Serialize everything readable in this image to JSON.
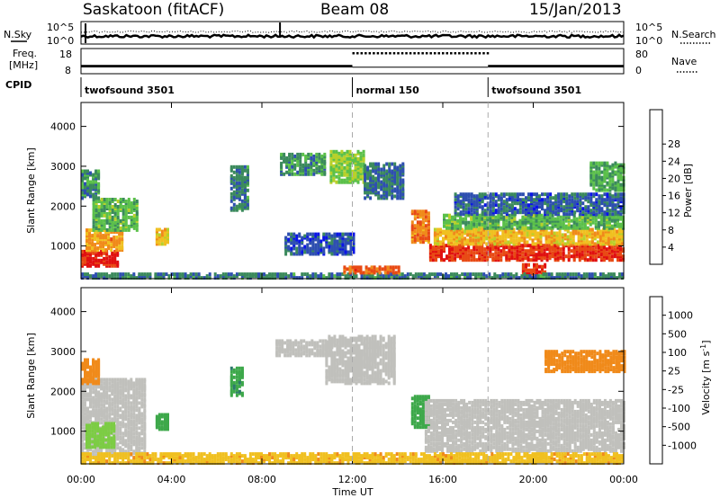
{
  "header": {
    "station": "Saskatoon (fitACF)",
    "beam": "Beam 08",
    "date": "15/Jan/2013"
  },
  "panel_labels": {
    "nsky": "N.Sky",
    "nsearch": "N.Search",
    "freq_line1": "Freq.",
    "freq_line2": "[MHz]",
    "nave": "Nave",
    "cpid": "CPID"
  },
  "noise_axis": {
    "left_ticks": [
      "10^5",
      "10^0"
    ],
    "right_ticks": [
      "10^5",
      "10^0"
    ]
  },
  "freq_axis": {
    "left_ticks": [
      "18",
      "8"
    ],
    "right_ticks": [
      "80",
      "0"
    ]
  },
  "cpid_segments": [
    {
      "label": "twofsound 3501",
      "start_hour": 0,
      "end_hour": 12
    },
    {
      "label": "normal 150",
      "start_hour": 12,
      "end_hour": 18
    },
    {
      "label": "twofsound 3501",
      "start_hour": 18,
      "end_hour": 24
    }
  ],
  "x_axis": {
    "label": "Time UT",
    "ticks": [
      "00:00",
      "04:00",
      "08:00",
      "12:00",
      "16:00",
      "20:00",
      "00:00"
    ],
    "tick_hours": [
      0,
      4,
      8,
      12,
      16,
      20,
      24
    ],
    "range_hours": [
      0,
      24
    ]
  },
  "chart_data": [
    {
      "type": "heatmap",
      "title": "",
      "parameter": "power",
      "xlabel": "Time UT",
      "ylabel": "Slant Range [km]",
      "xlim": [
        0,
        24
      ],
      "ylim": [
        180,
        4600
      ],
      "yticks": [
        1000,
        2000,
        3000,
        4000
      ],
      "colorbar": {
        "label": "Power [dB]",
        "ticks": [
          "4",
          "8",
          "12",
          "16",
          "20",
          "24",
          "28"
        ],
        "range": [
          0,
          32
        ],
        "colors": [
          "#0a14e8",
          "#2e4fb0",
          "#3b8a5c",
          "#5bc04a",
          "#b8d02a",
          "#f0c020",
          "#f08a1a",
          "#e84a14",
          "#e01010"
        ]
      },
      "regions": [
        {
          "t0": 0.0,
          "t1": 1.6,
          "r0": 500,
          "r1": 900,
          "value": 29
        },
        {
          "t0": 0.2,
          "t1": 1.8,
          "r0": 900,
          "r1": 1400,
          "value": 22
        },
        {
          "t0": 0.5,
          "t1": 2.5,
          "r0": 1400,
          "r1": 2200,
          "value": 12
        },
        {
          "t0": 0.0,
          "t1": 0.8,
          "r0": 2200,
          "r1": 2900,
          "value": 9
        },
        {
          "t0": 3.3,
          "t1": 3.9,
          "r0": 1050,
          "r1": 1450,
          "value": 20
        },
        {
          "t0": 6.6,
          "t1": 7.4,
          "r0": 1900,
          "r1": 3000,
          "value": 8
        },
        {
          "t0": 8.8,
          "t1": 10.8,
          "r0": 2800,
          "r1": 3300,
          "value": 9
        },
        {
          "t0": 9.0,
          "t1": 12.0,
          "r0": 800,
          "r1": 1300,
          "value": 5
        },
        {
          "t0": 11.0,
          "t1": 12.5,
          "r0": 2600,
          "r1": 3400,
          "value": 14
        },
        {
          "t0": 12.5,
          "t1": 14.2,
          "r0": 2200,
          "r1": 3100,
          "value": 7
        },
        {
          "t0": 14.6,
          "t1": 15.4,
          "r0": 1100,
          "r1": 1900,
          "value": 24
        },
        {
          "t0": 15.4,
          "t1": 24.0,
          "r0": 650,
          "r1": 1050,
          "value": 28
        },
        {
          "t0": 15.6,
          "t1": 24.0,
          "r0": 1050,
          "r1": 1450,
          "value": 20
        },
        {
          "t0": 16.0,
          "t1": 24.0,
          "r0": 1450,
          "r1": 1800,
          "value": 12
        },
        {
          "t0": 16.5,
          "t1": 24.0,
          "r0": 1800,
          "r1": 2300,
          "value": 6
        },
        {
          "t0": 19.5,
          "t1": 20.5,
          "r0": 300,
          "r1": 550,
          "value": 29
        },
        {
          "t0": 22.5,
          "t1": 24.0,
          "r0": 2400,
          "r1": 3100,
          "value": 11
        },
        {
          "t0": 0.0,
          "t1": 24.0,
          "r0": 200,
          "r1": 330,
          "value": 8
        },
        {
          "t0": 11.6,
          "t1": 14.0,
          "r0": 330,
          "r1": 500,
          "value": 26
        }
      ]
    },
    {
      "type": "heatmap",
      "title": "",
      "parameter": "velocity",
      "xlabel": "Time UT",
      "ylabel": "Slant Range [km]",
      "xlim": [
        0,
        24
      ],
      "ylim": [
        180,
        4600
      ],
      "yticks": [
        1000,
        2000,
        3000,
        4000
      ],
      "colorbar": {
        "label": "Velocity [m s^-1]",
        "ticks": [
          "1000",
          "500",
          "100",
          "25",
          "-25",
          "-100",
          "-500",
          "-1000"
        ],
        "levels": [
          1000,
          500,
          100,
          25,
          -25,
          -100,
          -500,
          -1000
        ],
        "colors": [
          "#1a3aa8",
          "#2c7a6a",
          "#3da84a",
          "#7ccc44",
          "#c0c0bc",
          "#f0c020",
          "#f08a1a",
          "#e84a14",
          "#e01010"
        ]
      },
      "regions": [
        {
          "t0": 0.0,
          "t1": 2.8,
          "r0": 400,
          "r1": 2300,
          "value": 0
        },
        {
          "t0": 0.2,
          "t1": 1.5,
          "r0": 600,
          "r1": 1200,
          "value": 60
        },
        {
          "t0": 0.0,
          "t1": 0.8,
          "r0": 2200,
          "r1": 2800,
          "value": -150
        },
        {
          "t0": 3.3,
          "t1": 3.9,
          "r0": 1050,
          "r1": 1450,
          "value": 300
        },
        {
          "t0": 6.6,
          "t1": 7.2,
          "r0": 1900,
          "r1": 2600,
          "value": 400
        },
        {
          "t0": 8.6,
          "t1": 11.0,
          "r0": 2900,
          "r1": 3300,
          "value": 0
        },
        {
          "t0": 10.8,
          "t1": 13.8,
          "r0": 2200,
          "r1": 3400,
          "value": 0
        },
        {
          "t0": 14.6,
          "t1": 15.4,
          "r0": 1100,
          "r1": 1900,
          "value": 200
        },
        {
          "t0": 15.2,
          "t1": 24.0,
          "r0": 500,
          "r1": 1800,
          "value": 0
        },
        {
          "t0": 0.0,
          "t1": 24.0,
          "r0": 200,
          "r1": 450,
          "value": -80
        },
        {
          "t0": 20.5,
          "t1": 24.0,
          "r0": 2500,
          "r1": 3000,
          "value": -200
        }
      ]
    }
  ],
  "noise_series": {
    "sky_level_fraction": 0.35,
    "search_level_fraction": 0.55
  },
  "freq_series": {
    "segments": [
      {
        "start_hour": 0,
        "end_hour": 12,
        "freq_top": 11.5,
        "freq_bottom": 10.5
      },
      {
        "start_hour": 12,
        "end_hour": 18,
        "freq_top": 10.6,
        "freq_bottom": 10.6
      },
      {
        "start_hour": 18,
        "end_hour": 24,
        "freq_top": 11.5,
        "freq_bottom": 10.5
      }
    ],
    "nave_dots_hours": [
      12,
      18
    ]
  }
}
